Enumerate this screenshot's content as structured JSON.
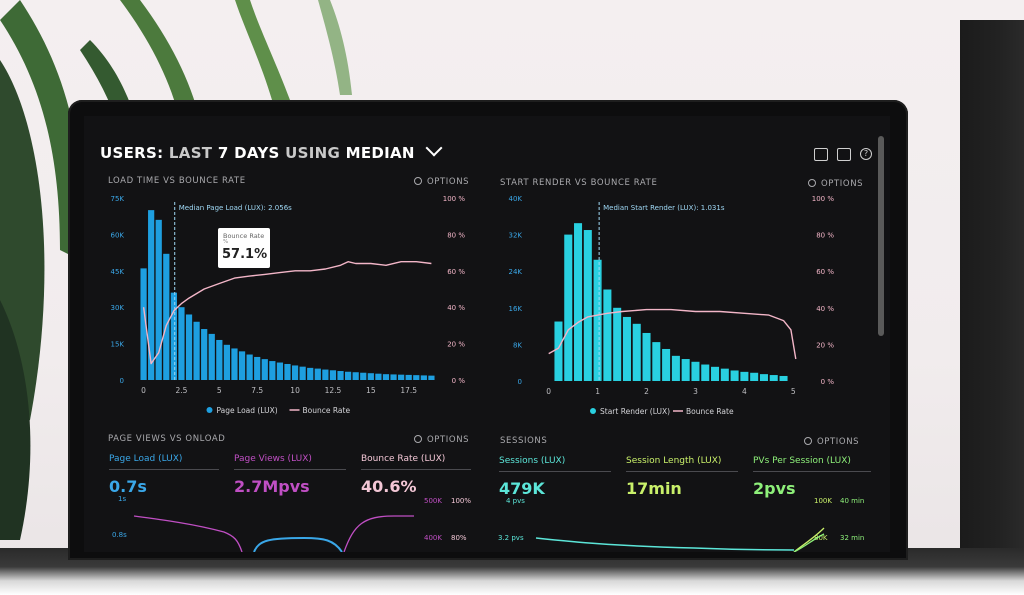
{
  "header": {
    "title_parts": [
      "USERS:",
      "LAST",
      "7 DAYS",
      "USING",
      "MEDIAN"
    ]
  },
  "panels": {
    "load": {
      "title": "LOAD TIME VS BOUNCE RATE",
      "options": "OPTIONS",
      "annotation": "Median Page Load (LUX): 2.056s"
    },
    "render": {
      "title": "START RENDER VS BOUNCE RATE",
      "options": "OPTIONS",
      "annotation": "Median Start Render (LUX): 1.031s"
    },
    "pageviews": {
      "title": "PAGE VIEWS VS ONLOAD",
      "options": "OPTIONS"
    },
    "sessions": {
      "title": "SESSIONS",
      "options": "OPTIONS"
    }
  },
  "tooltip": {
    "label": "Bounce Rate",
    "unit": "%",
    "value": "57.1%"
  },
  "metrics_left": [
    {
      "label": "Page Load (LUX)",
      "value": "0.7s",
      "color": "#3aa7e8"
    },
    {
      "label": "Page Views (LUX)",
      "value": "2.7Mpvs",
      "color": "#c04fc4"
    },
    {
      "label": "Bounce Rate (LUX)",
      "value": "40.6%",
      "color": "#f3c7d6"
    }
  ],
  "metrics_right": [
    {
      "label": "Sessions (LUX)",
      "value": "479K",
      "color": "#5ce6d9"
    },
    {
      "label": "Session Length (LUX)",
      "value": "17min",
      "color": "#c9f06a"
    },
    {
      "label": "PVs Per Session (LUX)",
      "value": "2pvs",
      "color": "#8ef07a"
    }
  ],
  "mini_axes": {
    "pv_left": [
      "1s",
      "0.8s"
    ],
    "pv_right_a": [
      "500K",
      "400K"
    ],
    "pv_right_b": [
      "100%",
      "80%"
    ],
    "ss_left": [
      "4 pvs",
      "3.2 pvs"
    ],
    "ss_right_a": [
      "100K",
      "80K"
    ],
    "ss_right_b": [
      "40 min",
      "32 min"
    ]
  },
  "chart_data": [
    {
      "type": "bar",
      "title": "LOAD TIME VS BOUNCE RATE",
      "x_ticks": [
        "0",
        "2.5",
        "5",
        "7.5",
        "10",
        "12.5",
        "15",
        "17.5"
      ],
      "x_tick_values": [
        0,
        2.5,
        5,
        7.5,
        10,
        12.5,
        15,
        17.5
      ],
      "xlim": [
        -0.5,
        19.5
      ],
      "y_ticks": [
        "0",
        "15K",
        "30K",
        "45K",
        "60K",
        "75K"
      ],
      "ylim": [
        0,
        75000
      ],
      "y2_ticks": [
        "0 %",
        "20 %",
        "40 %",
        "60 %",
        "80 %",
        "100 %"
      ],
      "y2lim": [
        0,
        100
      ],
      "series": [
        {
          "name": "Page Load (LUX)",
          "kind": "bar",
          "color": "#1e9fe0",
          "x": [
            0,
            0.5,
            1,
            1.5,
            2,
            2.5,
            3,
            3.5,
            4,
            4.5,
            5,
            5.5,
            6,
            6.5,
            7,
            7.5,
            8,
            8.5,
            9,
            9.5,
            10,
            10.5,
            11,
            11.5,
            12,
            12.5,
            13,
            13.5,
            14,
            14.5,
            15,
            15.5,
            16,
            16.5,
            17,
            17.5,
            18,
            18.5,
            19
          ],
          "values": [
            46000,
            70000,
            66000,
            52000,
            36000,
            30000,
            27000,
            24000,
            21000,
            19000,
            16500,
            14500,
            13000,
            11800,
            10500,
            9500,
            8600,
            7800,
            7200,
            6600,
            6000,
            5500,
            5000,
            4700,
            4300,
            4000,
            3700,
            3400,
            3200,
            3000,
            2800,
            2600,
            2400,
            2300,
            2200,
            2100,
            2000,
            1900,
            1800
          ]
        },
        {
          "name": "Bounce Rate",
          "kind": "line",
          "color": "#f3b6c8",
          "x": [
            0,
            0.5,
            1,
            1.5,
            2,
            2.5,
            3,
            4,
            5,
            6,
            7,
            8,
            9,
            10,
            11,
            12,
            13,
            13.5,
            14,
            15,
            16,
            17,
            18,
            19
          ],
          "values": [
            40,
            9,
            15,
            30,
            38,
            42,
            45,
            50,
            53,
            56,
            57.1,
            58,
            59,
            60,
            60,
            61,
            63,
            65,
            64,
            64,
            63,
            65,
            65,
            64
          ]
        }
      ]
    },
    {
      "type": "bar",
      "title": "START RENDER VS BOUNCE RATE",
      "x_ticks": [
        "0",
        "1",
        "2",
        "3",
        "4",
        "5"
      ],
      "x_tick_values": [
        0,
        1,
        2,
        3,
        4,
        5
      ],
      "xlim": [
        -0.3,
        5.3
      ],
      "y_ticks": [
        "0",
        "8K",
        "16K",
        "24K",
        "32K",
        "40K"
      ],
      "ylim": [
        0,
        40000
      ],
      "y2_ticks": [
        "0 %",
        "20 %",
        "40 %",
        "60 %",
        "80 %",
        "100 %"
      ],
      "y2lim": [
        0,
        100
      ],
      "series": [
        {
          "name": "Start Render (LUX)",
          "kind": "bar",
          "color": "#29d0e0",
          "x": [
            0.2,
            0.4,
            0.6,
            0.8,
            1.0,
            1.2,
            1.4,
            1.6,
            1.8,
            2.0,
            2.2,
            2.4,
            2.6,
            2.8,
            3.0,
            3.2,
            3.4,
            3.6,
            3.8,
            4.0,
            4.2,
            4.4,
            4.6,
            4.8
          ],
          "values": [
            13000,
            32000,
            34500,
            33000,
            26500,
            20000,
            16000,
            14000,
            12500,
            10500,
            8500,
            7000,
            5500,
            4800,
            4200,
            3600,
            3100,
            2700,
            2300,
            2000,
            1800,
            1500,
            1300,
            1100
          ]
        },
        {
          "name": "Bounce Rate",
          "kind": "line",
          "color": "#f3b6c8",
          "x": [
            0.0,
            0.2,
            0.4,
            0.6,
            0.8,
            1.0,
            1.2,
            1.5,
            2.0,
            2.5,
            3.0,
            3.5,
            4.0,
            4.5,
            4.8,
            4.95,
            5.05
          ],
          "values": [
            15,
            18,
            28,
            32,
            35,
            36,
            37,
            38,
            39,
            39,
            38,
            38,
            37,
            36,
            33,
            28,
            12
          ]
        }
      ]
    }
  ]
}
